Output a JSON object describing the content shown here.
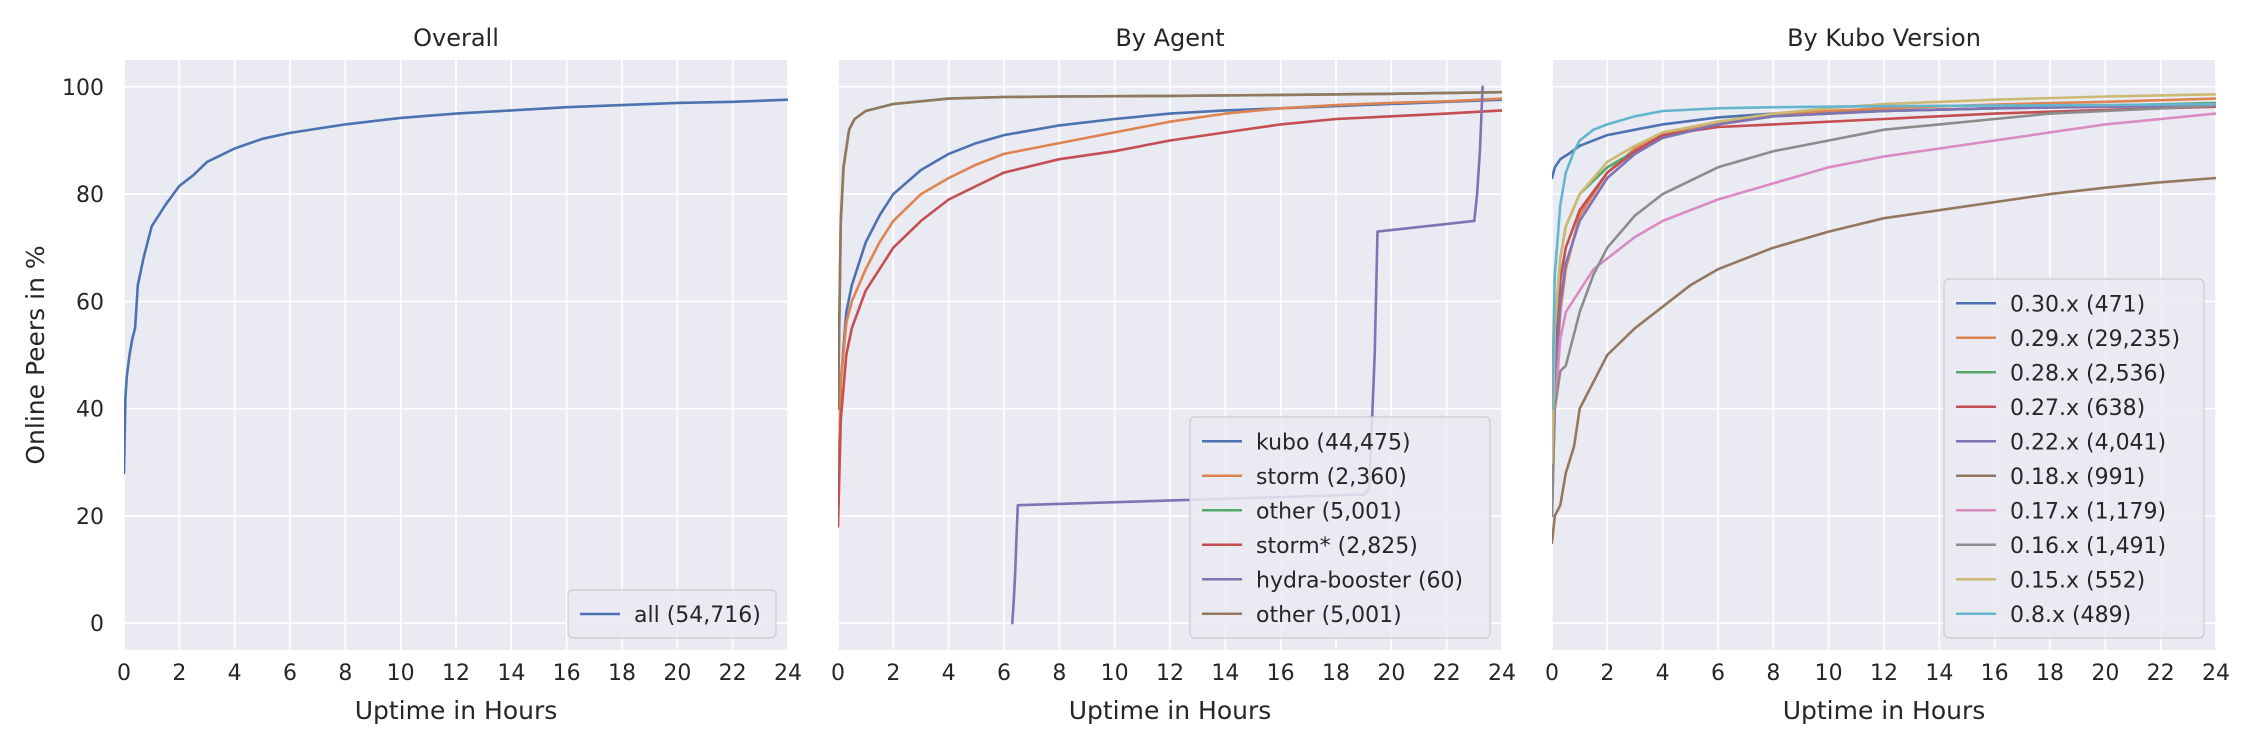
{
  "figure": {
    "ylabel": "Online Peers in %",
    "plot_background": "#eaeaf2",
    "grid_color": "#ffffff"
  },
  "chart_data": [
    {
      "type": "line",
      "title": "Overall",
      "xlabel": "Uptime in Hours",
      "ylabel": "Online Peers in %",
      "xlim": [
        0,
        24
      ],
      "ylim": [
        -5,
        105
      ],
      "xticks": [
        0,
        2,
        4,
        6,
        8,
        10,
        12,
        14,
        16,
        18,
        20,
        22,
        24
      ],
      "yticks": [
        0,
        20,
        40,
        60,
        80,
        100
      ],
      "grid": true,
      "legend_position": "lower-right",
      "series": [
        {
          "name": "all (54,716)",
          "color": "#4c72b0",
          "x": [
            0,
            0.05,
            0.1,
            0.2,
            0.3,
            0.4,
            0.5,
            0.7,
            1.0,
            1.5,
            2,
            2.5,
            3,
            4,
            5,
            6,
            8,
            10,
            12,
            14,
            16,
            18,
            20,
            22,
            24
          ],
          "y": [
            28,
            42,
            46,
            50,
            53,
            55,
            63,
            68,
            74,
            78,
            81.5,
            83.5,
            86,
            88.5,
            90.3,
            91.4,
            93,
            94.2,
            95,
            95.6,
            96.2,
            96.6,
            97,
            97.2,
            97.6
          ]
        }
      ]
    },
    {
      "type": "line",
      "title": "By Agent",
      "xlabel": "Uptime in Hours",
      "ylabel": "",
      "xlim": [
        0,
        24
      ],
      "ylim": [
        -5,
        105
      ],
      "xticks": [
        0,
        2,
        4,
        6,
        8,
        10,
        12,
        14,
        16,
        18,
        20,
        22,
        24
      ],
      "yticks": [
        0,
        20,
        40,
        60,
        80,
        100
      ],
      "grid": true,
      "legend_position": "lower-right",
      "series": [
        {
          "name": "kubo (44,475)",
          "color": "#4c72b0",
          "x": [
            0,
            0.1,
            0.3,
            0.5,
            1,
            1.5,
            2,
            3,
            4,
            5,
            6,
            8,
            10,
            12,
            14,
            16,
            18,
            20,
            22,
            24
          ],
          "y": [
            20,
            45,
            58,
            63,
            71,
            76,
            80,
            84.5,
            87.5,
            89.5,
            91,
            92.8,
            94,
            95,
            95.6,
            96,
            96.4,
            96.8,
            97.2,
            97.6
          ]
        },
        {
          "name": "storm (2,360)",
          "color": "#dd8452",
          "x": [
            0,
            0.1,
            0.3,
            0.5,
            1,
            1.5,
            2,
            3,
            4,
            5,
            6,
            8,
            10,
            12,
            14,
            16,
            18,
            20,
            22,
            24
          ],
          "y": [
            20,
            45,
            56,
            60,
            66,
            71,
            75,
            80,
            83,
            85.5,
            87.5,
            89.5,
            91.5,
            93.5,
            95,
            96,
            96.6,
            97,
            97.3,
            97.8
          ]
        },
        {
          "name": "other (5,001)",
          "color": "#55a868",
          "x": [
            0,
            0.1,
            0.2,
            0.4,
            0.6,
            1,
            2,
            4,
            6,
            8,
            12,
            16,
            20,
            24
          ],
          "y": [
            40,
            75,
            85,
            92,
            94,
            95.5,
            96.8,
            97.8,
            98.1,
            98.2,
            98.3,
            98.5,
            98.7,
            99
          ]
        },
        {
          "name": "storm* (2,825)",
          "color": "#c44e52",
          "x": [
            0,
            0.1,
            0.3,
            0.5,
            1,
            1.5,
            2,
            3,
            4,
            5,
            6,
            8,
            10,
            12,
            14,
            16,
            18,
            20,
            22,
            24
          ],
          "y": [
            18,
            38,
            50,
            55,
            62,
            66,
            70,
            75,
            79,
            81.5,
            84,
            86.5,
            88,
            90,
            91.5,
            93,
            94,
            94.5,
            95,
            95.6
          ]
        },
        {
          "name": "hydra-booster (60)",
          "color": "#8172b3",
          "x": [
            6.3,
            6.35,
            6.4,
            6.45,
            6.5,
            19.0,
            19.2,
            19.4,
            19.5,
            23.0,
            23.1,
            23.2,
            23.3
          ],
          "y": [
            0,
            4,
            9,
            16,
            22,
            24,
            25,
            50,
            73,
            75,
            80,
            88,
            100
          ]
        },
        {
          "name": "other (5,001)",
          "color": "#937860",
          "x": [
            0,
            0.1,
            0.2,
            0.4,
            0.6,
            1,
            2,
            4,
            6,
            8,
            12,
            16,
            20,
            24
          ],
          "y": [
            40,
            75,
            85,
            92,
            94,
            95.5,
            96.8,
            97.8,
            98.1,
            98.2,
            98.3,
            98.5,
            98.7,
            99
          ]
        }
      ]
    },
    {
      "type": "line",
      "title": "By Kubo Version",
      "xlabel": "Uptime in Hours",
      "ylabel": "",
      "xlim": [
        0,
        24
      ],
      "ylim": [
        -5,
        105
      ],
      "xticks": [
        0,
        2,
        4,
        6,
        8,
        10,
        12,
        14,
        16,
        18,
        20,
        22,
        24
      ],
      "yticks": [
        0,
        20,
        40,
        60,
        80,
        100
      ],
      "grid": true,
      "legend_position": "lower-right",
      "series": [
        {
          "name": "0.30.x (471)",
          "color": "#4c72b0",
          "x": [
            0,
            0.1,
            0.3,
            0.6,
            1,
            2,
            3,
            4,
            6,
            8,
            12,
            16,
            20,
            24
          ],
          "y": [
            83,
            85,
            86.5,
            87.5,
            89,
            91,
            92,
            93,
            94.3,
            95,
            95.5,
            96,
            96.3,
            96.6
          ]
        },
        {
          "name": "0.29.x (29,235)",
          "color": "#dd8452",
          "x": [
            0,
            0.1,
            0.3,
            0.5,
            1,
            2,
            3,
            4,
            6,
            8,
            10,
            12,
            16,
            20,
            24
          ],
          "y": [
            20,
            42,
            58,
            66,
            76,
            84,
            88.5,
            91,
            93.5,
            94.7,
            95.5,
            96,
            96.7,
            97.2,
            97.8
          ]
        },
        {
          "name": "0.28.x (2,536)",
          "color": "#55a868",
          "x": [
            0,
            0.1,
            0.3,
            0.5,
            1,
            2,
            3,
            4,
            6,
            8,
            12,
            16,
            20,
            24
          ],
          "y": [
            30,
            55,
            68,
            74,
            80,
            85,
            88,
            90.5,
            93,
            94.5,
            95.5,
            96,
            96.5,
            97
          ]
        },
        {
          "name": "0.27.x (638)",
          "color": "#c44e52",
          "x": [
            0,
            0.1,
            0.3,
            0.5,
            1,
            2,
            3,
            4,
            6,
            8,
            12,
            16,
            20,
            24
          ],
          "y": [
            25,
            50,
            64,
            70,
            77,
            84,
            88,
            91,
            92.5,
            93,
            94,
            95,
            95.7,
            96.3
          ]
        },
        {
          "name": "0.22.x (4,041)",
          "color": "#8172b3",
          "x": [
            0,
            0.1,
            0.3,
            0.5,
            1,
            2,
            3,
            4,
            6,
            8,
            12,
            16,
            20,
            24
          ],
          "y": [
            25,
            45,
            60,
            67,
            75,
            83,
            87.5,
            90.5,
            93,
            94.5,
            95.5,
            96,
            96.3,
            96.5
          ]
        },
        {
          "name": "0.18.x (991)",
          "color": "#937860",
          "x": [
            0,
            0.1,
            0.3,
            0.5,
            0.8,
            1,
            1.5,
            2,
            3,
            4,
            5,
            6,
            8,
            10,
            12,
            14,
            16,
            18,
            20,
            22,
            24
          ],
          "y": [
            15,
            20,
            22,
            28,
            33,
            40,
            45,
            50,
            55,
            59,
            63,
            66,
            70,
            73,
            75.5,
            77,
            78.5,
            80,
            81.2,
            82.2,
            83
          ]
        },
        {
          "name": "0.17.x (1,179)",
          "color": "#da8bc3",
          "x": [
            0,
            0.1,
            0.3,
            0.5,
            1,
            1.5,
            2,
            3,
            4,
            6,
            8,
            10,
            12,
            14,
            16,
            18,
            20,
            22,
            24
          ],
          "y": [
            20,
            40,
            53,
            58,
            62,
            66,
            68,
            72,
            75,
            79,
            82,
            85,
            87,
            88.5,
            90,
            91.5,
            93,
            94,
            95
          ]
        },
        {
          "name": "0.16.x (1,491)",
          "color": "#8c8c8c",
          "x": [
            0,
            0.1,
            0.3,
            0.5,
            1,
            1.5,
            2,
            3,
            4,
            6,
            8,
            10,
            12,
            14,
            16,
            18,
            20,
            22,
            24
          ],
          "y": [
            20,
            40,
            47,
            48,
            58,
            65,
            70,
            76,
            80,
            85,
            88,
            90,
            92,
            93,
            94,
            95,
            95.5,
            96,
            96.5
          ]
        },
        {
          "name": "0.15.x (552)",
          "color": "#ccb974",
          "x": [
            0,
            0.1,
            0.3,
            0.5,
            1,
            2,
            3,
            4,
            6,
            8,
            10,
            12,
            16,
            20,
            24
          ],
          "y": [
            30,
            55,
            68,
            74,
            80,
            86,
            89,
            91.5,
            93.5,
            95,
            96,
            96.8,
            97.6,
            98.2,
            98.6
          ]
        },
        {
          "name": "0.8.x (489)",
          "color": "#64b5cd",
          "x": [
            0,
            0.1,
            0.3,
            0.5,
            0.8,
            1,
            1.5,
            2,
            3,
            4,
            6,
            8,
            12,
            16,
            20,
            24
          ],
          "y": [
            40,
            65,
            78,
            84,
            88,
            90,
            92,
            93,
            94.5,
            95.5,
            96,
            96.2,
            96.4,
            96.5,
            96.6,
            96.8
          ]
        }
      ]
    }
  ]
}
